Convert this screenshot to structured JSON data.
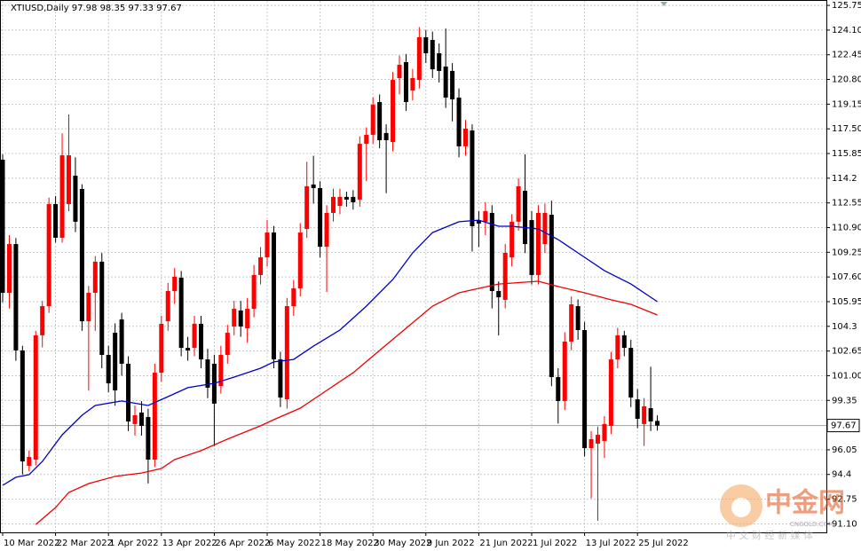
{
  "chart_data": {
    "type": "candlestick",
    "title": "XTIUSD,Daily  97.98 98.35 97.33 97.67",
    "categories": [
      "10 Mar 2022",
      null,
      null,
      null,
      null,
      null,
      null,
      null,
      "22 Mar 2022",
      null,
      null,
      null,
      null,
      null,
      null,
      null,
      "1 Apr 2022",
      null,
      null,
      null,
      null,
      null,
      null,
      null,
      "13 Apr 2022",
      null,
      null,
      null,
      null,
      null,
      null,
      null,
      "26 Apr 2022",
      null,
      null,
      null,
      null,
      null,
      null,
      null,
      "6 May 2022",
      null,
      null,
      null,
      null,
      null,
      null,
      null,
      "18 May 2022",
      null,
      null,
      null,
      null,
      null,
      null,
      null,
      "30 May 2022",
      null,
      null,
      null,
      null,
      null,
      null,
      null,
      "9 Jun 2022",
      null,
      null,
      null,
      null,
      null,
      null,
      null,
      "21 Jun 2022",
      null,
      null,
      null,
      null,
      null,
      null,
      null,
      "1 Jul 2022",
      null,
      null,
      null,
      null,
      null,
      null,
      null,
      "13 Jul 2022",
      null,
      null,
      null,
      null,
      null,
      null,
      null,
      "25 Jul 2022",
      null,
      null,
      null
    ],
    "open": [
      115.44,
      106.54,
      109.8,
      102.69,
      94.98,
      95.39,
      103.7,
      105.65,
      112.47,
      110.22,
      112.47,
      114.37,
      113.48,
      104.64,
      106.54,
      108.62,
      102.39,
      103.87,
      104.76,
      101.8,
      97.77,
      98.54,
      98.24,
      95.39,
      101.2,
      104.64,
      106.66,
      107.55,
      102.86,
      102.86,
      104.47,
      102.09,
      101.8,
      100.31,
      102.39,
      104.29,
      105.36,
      104.17,
      105.47,
      107.73,
      108.91,
      110.57,
      102.09,
      99.42,
      105.65,
      106.84,
      110.81,
      113.78,
      113.54,
      109.62,
      111.88,
      112.35,
      112.95,
      112.95,
      112.77,
      116.5,
      117.1,
      119.29,
      117.22,
      116.62,
      120.89,
      121.96,
      120.06,
      120.77,
      123.62,
      123.44,
      122.55,
      121.66,
      121.37,
      119.59,
      116.33,
      117.39,
      111.4,
      111.29,
      111.88,
      106.66,
      106.07,
      108.91,
      111.29,
      113.36,
      111.4,
      107.73,
      109.8,
      111.76,
      100.91,
      99.31,
      103.28,
      105.65,
      104.05,
      96.16,
      96.46,
      96.64,
      97.65,
      102.09,
      103.7,
      102.86,
      99.42,
      97.77,
      98.83,
      97.98
    ],
    "high": [
      115.8,
      110.4,
      110.2,
      103.0,
      96.0,
      104.0,
      106.0,
      112.9,
      113.0,
      117.2,
      118.46,
      115.6,
      113.8,
      107.0,
      109.0,
      109.2,
      103.0,
      104.5,
      105.2,
      102.3,
      99.0,
      99.3,
      98.8,
      101.8,
      105.0,
      107.2,
      108.2,
      108.0,
      103.6,
      105.0,
      105.0,
      102.8,
      102.4,
      103.0,
      104.4,
      106.0,
      106.0,
      106.2,
      108.4,
      109.6,
      111.4,
      111.0,
      102.6,
      106.2,
      107.4,
      111.2,
      115.3,
      115.7,
      114.0,
      112.4,
      113.5,
      113.5,
      113.3,
      113.4,
      117.0,
      117.6,
      119.6,
      119.8,
      117.8,
      121.3,
      122.4,
      122.5,
      121.5,
      124.3,
      124.1,
      124.0,
      123.2,
      124.2,
      121.9,
      120.2,
      118.1,
      117.8,
      112.0,
      112.6,
      112.4,
      107.3,
      109.8,
      111.8,
      114.2,
      115.8,
      112.0,
      112.4,
      112.5,
      112.7,
      101.5,
      103.9,
      106.3,
      106.1,
      104.6,
      97.3,
      97.6,
      98.3,
      102.6,
      104.2,
      104.0,
      103.4,
      100.1,
      99.5,
      101.6,
      98.35
    ],
    "low": [
      105.9,
      105.5,
      102.0,
      94.4,
      94.6,
      95.0,
      102.9,
      105.2,
      109.9,
      109.9,
      112.0,
      110.6,
      104.0,
      100.0,
      104.0,
      101.5,
      99.9,
      99.0,
      101.0,
      97.3,
      97.0,
      97.0,
      93.8,
      94.9,
      100.6,
      104.0,
      105.8,
      102.3,
      102.0,
      102.3,
      101.5,
      99.5,
      96.3,
      99.8,
      101.8,
      103.7,
      103.6,
      103.2,
      104.9,
      107.1,
      108.3,
      101.5,
      98.9,
      98.8,
      105.0,
      106.3,
      110.2,
      112.5,
      108.9,
      106.6,
      111.3,
      111.8,
      112.3,
      112.1,
      112.3,
      114.0,
      116.5,
      116.2,
      113.2,
      116.0,
      119.8,
      118.7,
      119.4,
      120.2,
      121.9,
      120.9,
      120.6,
      118.9,
      118.0,
      115.6,
      115.7,
      109.3,
      109.6,
      110.4,
      105.5,
      103.7,
      105.5,
      108.3,
      110.7,
      109.2,
      107.1,
      107.1,
      109.2,
      100.3,
      97.8,
      98.7,
      102.7,
      103.4,
      95.6,
      92.8,
      91.3,
      95.5,
      97.1,
      101.5,
      102.3,
      98.9,
      97.5,
      96.3,
      97.3,
      97.33
    ],
    "close": [
      106.54,
      109.8,
      102.69,
      95.27,
      95.57,
      103.7,
      105.65,
      112.47,
      110.22,
      115.73,
      115.73,
      111.29,
      104.64,
      106.54,
      108.62,
      102.39,
      100.49,
      100.02,
      101.8,
      97.94,
      98.36,
      97.65,
      95.39,
      101.2,
      104.47,
      106.66,
      107.61,
      102.86,
      102.69,
      104.47,
      102.09,
      100.2,
      99.13,
      102.39,
      103.87,
      105.47,
      104.29,
      105.47,
      107.73,
      108.91,
      110.57,
      102.09,
      99.54,
      105.65,
      106.84,
      110.57,
      113.66,
      113.54,
      109.62,
      111.88,
      112.95,
      112.95,
      112.77,
      112.59,
      116.5,
      117.1,
      119.11,
      116.74,
      116.74,
      120.77,
      121.78,
      119.29,
      120.89,
      123.62,
      122.55,
      121.48,
      121.37,
      119.59,
      119.47,
      116.33,
      117.51,
      110.99,
      111.17,
      112.0,
      106.66,
      106.24,
      109.21,
      111.29,
      113.66,
      109.8,
      107.73,
      111.88,
      111.88,
      100.91,
      99.31,
      103.28,
      105.77,
      104.05,
      96.16,
      96.76,
      97.05,
      97.77,
      102.09,
      103.7,
      102.86,
      99.54,
      98.12,
      98.95,
      97.94,
      97.67
    ],
    "up_color": "#ff0000",
    "down_color": "#000000",
    "moving_averages": [
      {
        "color": "#0000cc",
        "x": [
          0,
          2,
          4,
          6,
          9,
          12,
          14,
          18,
          22,
          25,
          28,
          32,
          35,
          39,
          41,
          44,
          47,
          51,
          55,
          59,
          62,
          65,
          69,
          72,
          75,
          77,
          81,
          84,
          87,
          91,
          95,
          99
        ],
        "values": [
          93.67,
          94.21,
          94.39,
          95.27,
          97.05,
          98.36,
          99.01,
          99.31,
          99.01,
          99.6,
          100.2,
          100.49,
          100.91,
          101.5,
          101.92,
          102.09,
          102.98,
          104.05,
          105.65,
          107.43,
          109.21,
          110.57,
          111.29,
          111.4,
          110.99,
          110.99,
          110.81,
          110.1,
          109.21,
          108.02,
          107.13,
          105.95
        ]
      },
      {
        "color": "#ee0000",
        "x": [
          5,
          8,
          10,
          13,
          17,
          21,
          24,
          26,
          30,
          34,
          39,
          41,
          45,
          49,
          53,
          57,
          61,
          65,
          69,
          72,
          75,
          79,
          81,
          84,
          88,
          92,
          95,
          99
        ],
        "values": [
          91.06,
          92.19,
          93.2,
          93.79,
          94.27,
          94.5,
          94.8,
          95.39,
          95.99,
          96.76,
          97.65,
          98.06,
          98.83,
          100.02,
          101.2,
          102.69,
          104.17,
          105.65,
          106.54,
          106.84,
          107.13,
          107.25,
          107.31,
          106.96,
          106.54,
          106.07,
          105.77,
          105.06
        ]
      }
    ],
    "last_price": 97.67,
    "ylim": [
      90.53,
      126.11
    ],
    "yticks": [
      125.75,
      {
        "value": 124.1,
        "label": "124.10"
      },
      122.45,
      {
        "value": 120.8,
        "label": "120.80"
      },
      119.15,
      {
        "value": 117.5,
        "label": "117.50"
      },
      115.85,
      114.2,
      112.55,
      {
        "value": 110.9,
        "label": "110.90"
      },
      109.25,
      {
        "value": 107.6,
        "label": "107.60"
      },
      105.95,
      104.3,
      102.65,
      {
        "value": 101,
        "label": "101.00"
      },
      99.35,
      96.05,
      94.4,
      92.75,
      {
        "value": 91.1,
        "label": "91.10"
      }
    ],
    "grid": true,
    "watermark": {
      "logo": "中金网",
      "site": "CNGOLD.COM",
      "slogan": "中 文 财 经 新 媒 体"
    }
  }
}
